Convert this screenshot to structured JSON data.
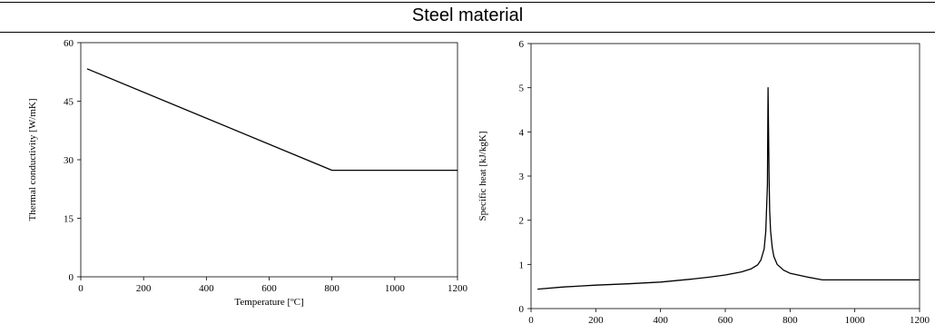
{
  "page": {
    "title": "Steel material"
  },
  "chart_data": [
    {
      "type": "line",
      "xlabel": "Temperature [ºC]",
      "ylabel": "Thermal conductivity [W/mK]",
      "xlim": [
        0,
        1200
      ],
      "ylim": [
        0,
        60
      ],
      "xticks": [
        0,
        200,
        400,
        600,
        800,
        1000,
        1200
      ],
      "yticks": [
        0,
        15,
        30,
        45,
        60
      ],
      "grid": false,
      "series": [
        {
          "x": [
            20,
            800,
            1200
          ],
          "y": [
            53.3,
            27.3,
            27.3
          ]
        }
      ]
    },
    {
      "type": "line",
      "xlabel": "Temperature [ºC]",
      "ylabel": "Specific heat [kJ/kgK]",
      "xlim": [
        0,
        1200
      ],
      "ylim": [
        0,
        6
      ],
      "xticks": [
        0,
        200,
        400,
        600,
        800,
        1000,
        1200
      ],
      "yticks": [
        0,
        1,
        2,
        3,
        4,
        5,
        6
      ],
      "grid": false,
      "series": [
        {
          "x": [
            20,
            100,
            200,
            300,
            400,
            500,
            550,
            600,
            650,
            680,
            700,
            710,
            720,
            725,
            730,
            732,
            735,
            737,
            740,
            745,
            750,
            760,
            780,
            800,
            850,
            900,
            1000,
            1100,
            1200
          ],
          "y": [
            0.44,
            0.49,
            0.53,
            0.56,
            0.6,
            0.67,
            0.71,
            0.76,
            0.83,
            0.9,
            0.99,
            1.1,
            1.35,
            1.75,
            2.8,
            5.0,
            3.0,
            2.2,
            1.75,
            1.38,
            1.18,
            1.0,
            0.87,
            0.8,
            0.72,
            0.65,
            0.65,
            0.65,
            0.65
          ]
        }
      ]
    }
  ]
}
